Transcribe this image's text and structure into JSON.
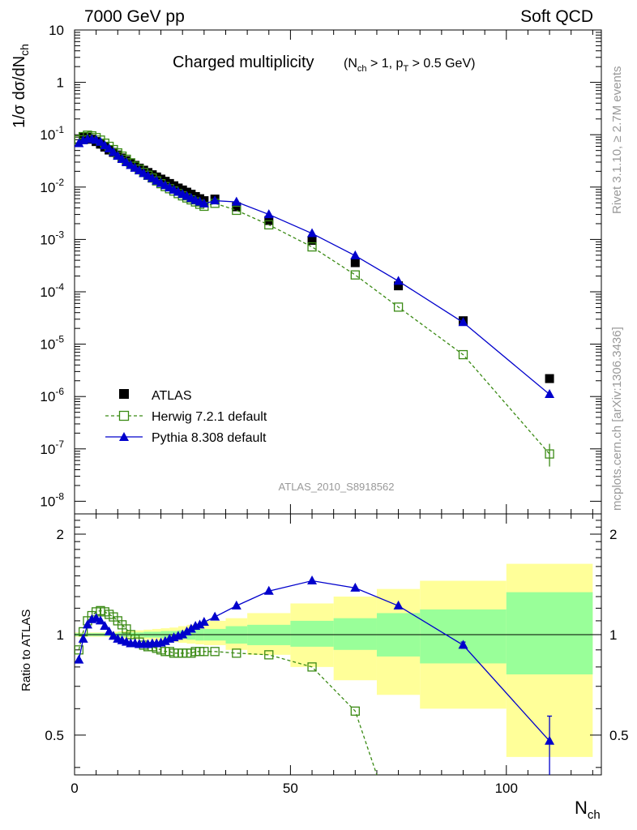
{
  "header": {
    "left": "7000 GeV pp",
    "right": "Soft QCD"
  },
  "side_labels": {
    "rivet": "Rivet 3.1.10, ≥ 2.7M events",
    "mcplots": "mcplots.cern.ch [arXiv:1306.3436]"
  },
  "watermark": "ATLAS_2010_S8918562",
  "colors": {
    "atlas": "#000000",
    "herwig": "#3a8a14",
    "pythia": "#0000cc",
    "band_outer": "#ffff99",
    "band_inner": "#99ff99"
  },
  "chart_data": [
    {
      "type": "scatter",
      "title": "Charged multiplicity",
      "title_suffix": "(N_ch > 1, p_T > 0.5 GeV)",
      "ylabel": "1/σ dσ/dN_ch",
      "xlabel": "N_ch",
      "xlim": [
        0,
        122
      ],
      "ylim": [
        1e-08,
        10
      ],
      "log_y": true,
      "xticks": [
        "0",
        "50",
        "100"
      ],
      "yticks": [
        "10",
        "1",
        "10^-1",
        "10^-2",
        "10^-3",
        "10^-4",
        "10^-5",
        "10^-6",
        "10^-7",
        "10^-8"
      ],
      "legend_position": "lower-left",
      "series": [
        {
          "name": "ATLAS",
          "marker": "filled-square",
          "x": [
            2,
            3,
            4,
            5,
            6,
            7,
            8,
            9,
            10,
            11,
            12,
            13,
            14,
            15,
            16,
            17,
            18,
            19,
            20,
            21,
            22,
            23,
            24,
            25,
            26,
            27,
            28,
            29,
            30,
            32.5,
            37.5,
            45,
            55,
            65,
            75,
            90,
            110
          ],
          "y": [
            0.092,
            0.09,
            0.082,
            0.074,
            0.066,
            0.058,
            0.051,
            0.046,
            0.041,
            0.036,
            0.032,
            0.029,
            0.026,
            0.023,
            0.021,
            0.019,
            0.0172,
            0.0156,
            0.0142,
            0.0129,
            0.0117,
            0.0106,
            0.0096,
            0.0088,
            0.008,
            0.0073,
            0.0066,
            0.006,
            0.0055,
            0.0059,
            0.0042,
            0.0023,
            0.00096,
            0.00036,
            0.00013,
            2.8e-05,
            2.2e-06
          ]
        },
        {
          "name": "Herwig 7.2.1 default",
          "marker": "open-square",
          "line": "dashed",
          "x": [
            1,
            2,
            3,
            4,
            5,
            6,
            7,
            8,
            9,
            10,
            11,
            12,
            13,
            14,
            15,
            16,
            17,
            18,
            19,
            20,
            21,
            22,
            23,
            24,
            25,
            26,
            27,
            28,
            29,
            30,
            32.5,
            37.5,
            45,
            55,
            65,
            75,
            90,
            110
          ],
          "y": [
            0.08,
            0.092,
            0.098,
            0.095,
            0.088,
            0.079,
            0.069,
            0.06,
            0.052,
            0.045,
            0.039,
            0.034,
            0.029,
            0.025,
            0.022,
            0.019,
            0.0168,
            0.0149,
            0.0131,
            0.0116,
            0.0102,
            0.0093,
            0.0084,
            0.0075,
            0.0068,
            0.0062,
            0.0057,
            0.0052,
            0.0047,
            0.0043,
            0.0049,
            0.0036,
            0.0019,
            0.00072,
            0.00021,
            5.1e-05,
            6.3e-06,
            8e-08
          ]
        },
        {
          "name": "Pythia 8.308 default",
          "marker": "filled-triangle",
          "line": "solid",
          "x": [
            1,
            2,
            3,
            4,
            5,
            6,
            7,
            8,
            9,
            10,
            11,
            12,
            13,
            14,
            15,
            16,
            17,
            18,
            19,
            20,
            21,
            22,
            23,
            24,
            25,
            26,
            27,
            28,
            29,
            30,
            32.5,
            37.5,
            45,
            55,
            65,
            75,
            90,
            110
          ],
          "y": [
            0.068,
            0.077,
            0.082,
            0.082,
            0.079,
            0.072,
            0.062,
            0.054,
            0.046,
            0.039,
            0.034,
            0.0295,
            0.026,
            0.023,
            0.0205,
            0.0182,
            0.0163,
            0.0146,
            0.0131,
            0.0118,
            0.0107,
            0.0097,
            0.0088,
            0.008,
            0.0073,
            0.0067,
            0.0061,
            0.0056,
            0.0052,
            0.0048,
            0.0055,
            0.0052,
            0.003,
            0.0013,
            0.00049,
            0.00016,
            2.6e-05,
            1.1e-06
          ]
        }
      ]
    },
    {
      "type": "scatter",
      "title": "",
      "ylabel": "Ratio to ATLAS",
      "xlabel": "N_ch",
      "xlim": [
        0,
        122
      ],
      "ylim": [
        0.38,
        2.3
      ],
      "yticks": [
        "2",
        "1",
        "0.5"
      ],
      "reference_line": 1,
      "bands": [
        {
          "name": "outer",
          "edges": [
            0,
            2,
            4,
            6,
            8,
            10,
            12,
            14,
            16,
            18,
            20,
            22,
            24,
            26,
            28,
            30,
            35,
            40,
            50,
            60,
            70,
            80,
            100,
            120
          ],
          "lo": [
            0.985,
            0.985,
            0.985,
            0.985,
            0.98,
            0.975,
            0.97,
            0.97,
            0.965,
            0.96,
            0.955,
            0.95,
            0.945,
            0.94,
            0.935,
            0.93,
            0.9,
            0.87,
            0.8,
            0.73,
            0.66,
            0.6,
            0.43
          ],
          "hi": [
            1.015,
            1.015,
            1.015,
            1.015,
            1.02,
            1.025,
            1.03,
            1.03,
            1.035,
            1.04,
            1.045,
            1.05,
            1.06,
            1.07,
            1.08,
            1.1,
            1.12,
            1.16,
            1.24,
            1.3,
            1.37,
            1.45,
            1.63
          ]
        },
        {
          "name": "inner",
          "edges": [
            0,
            2,
            4,
            6,
            8,
            10,
            12,
            14,
            16,
            18,
            20,
            22,
            24,
            26,
            28,
            30,
            35,
            40,
            50,
            60,
            70,
            80,
            100,
            120
          ],
          "lo": [
            0.99,
            0.99,
            0.99,
            0.99,
            0.99,
            0.985,
            0.985,
            0.985,
            0.98,
            0.98,
            0.975,
            0.975,
            0.97,
            0.965,
            0.96,
            0.96,
            0.94,
            0.93,
            0.92,
            0.9,
            0.86,
            0.82,
            0.76
          ],
          "hi": [
            1.01,
            1.01,
            1.01,
            1.01,
            1.01,
            1.015,
            1.015,
            1.015,
            1.02,
            1.02,
            1.025,
            1.025,
            1.03,
            1.035,
            1.04,
            1.04,
            1.06,
            1.07,
            1.1,
            1.12,
            1.16,
            1.19,
            1.34
          ]
        }
      ],
      "series": [
        {
          "name": "Herwig 7.2.1 default",
          "marker": "open-square",
          "line": "dashed",
          "x": [
            1,
            2,
            3,
            4,
            5,
            6,
            7,
            8,
            9,
            10,
            11,
            12,
            13,
            14,
            15,
            16,
            17,
            18,
            19,
            20,
            21,
            22,
            23,
            24,
            25,
            26,
            27,
            28,
            29,
            30,
            32.5,
            37.5,
            45,
            55,
            65,
            70
          ],
          "y": [
            0.9,
            1.02,
            1.1,
            1.14,
            1.17,
            1.18,
            1.17,
            1.15,
            1.13,
            1.1,
            1.07,
            1.04,
            1.0,
            0.97,
            0.95,
            0.93,
            0.92,
            0.92,
            0.91,
            0.9,
            0.89,
            0.89,
            0.88,
            0.88,
            0.88,
            0.88,
            0.88,
            0.89,
            0.89,
            0.89,
            0.89,
            0.88,
            0.87,
            0.8,
            0.59,
            0.38
          ]
        },
        {
          "name": "Pythia 8.308 default",
          "marker": "filled-triangle",
          "line": "solid",
          "x": [
            1,
            2,
            3,
            4,
            5,
            6,
            7,
            8,
            9,
            10,
            11,
            12,
            13,
            14,
            15,
            16,
            17,
            18,
            19,
            20,
            21,
            22,
            23,
            24,
            25,
            26,
            27,
            28,
            29,
            30,
            32.5,
            37.5,
            45,
            55,
            65,
            75,
            90,
            110
          ],
          "y": [
            0.84,
            0.97,
            1.07,
            1.11,
            1.12,
            1.1,
            1.06,
            1.02,
            0.99,
            0.97,
            0.96,
            0.95,
            0.94,
            0.94,
            0.935,
            0.935,
            0.935,
            0.94,
            0.94,
            0.945,
            0.955,
            0.97,
            0.98,
            0.99,
            1.0,
            1.02,
            1.04,
            1.06,
            1.07,
            1.09,
            1.13,
            1.22,
            1.35,
            1.45,
            1.38,
            1.22,
            0.93,
            0.48
          ],
          "err_x": [
            90,
            110
          ],
          "err_lo": [
            0.91,
            0.37
          ],
          "err_hi": [
            0.95,
            0.57
          ]
        }
      ]
    }
  ]
}
